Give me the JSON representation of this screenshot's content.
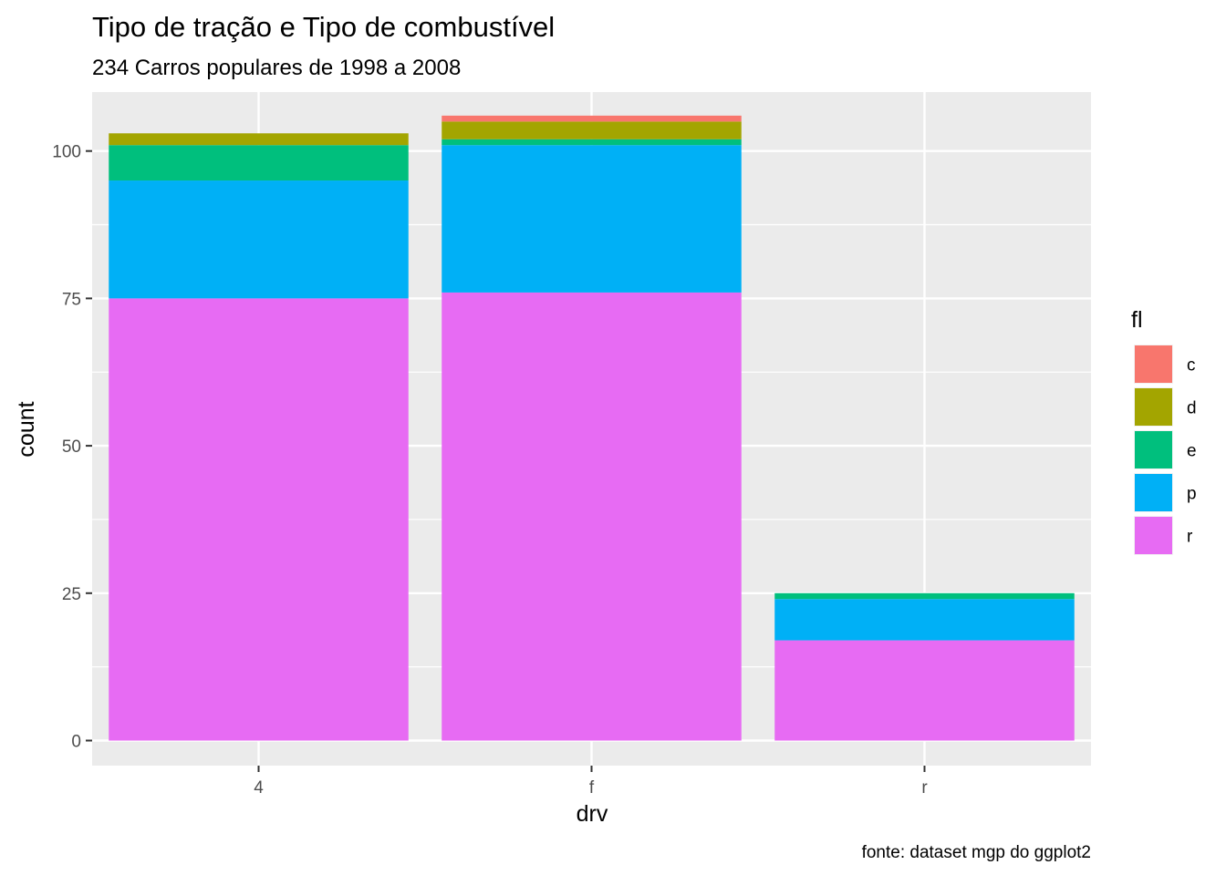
{
  "chart_data": {
    "type": "bar",
    "stacked": true,
    "title": "Tipo de tração e Tipo de combustível",
    "subtitle": "234 Carros populares de 1998 a 2008",
    "caption": "fonte: dataset mgp do ggplot2",
    "xlabel": "drv",
    "ylabel": "count",
    "categories": [
      "4",
      "f",
      "r"
    ],
    "ylim": [
      -4.25,
      110
    ],
    "yticks": [
      0,
      25,
      50,
      75,
      100
    ],
    "grid": true,
    "legend": {
      "title": "fl",
      "position": "right"
    },
    "series": [
      {
        "name": "c",
        "color": "#F8766D",
        "values": [
          0,
          1,
          0
        ]
      },
      {
        "name": "d",
        "color": "#A3A500",
        "values": [
          2,
          3,
          0
        ]
      },
      {
        "name": "e",
        "color": "#00BF7D",
        "values": [
          6,
          1,
          1
        ]
      },
      {
        "name": "p",
        "color": "#00B0F6",
        "values": [
          20,
          25,
          7
        ]
      },
      {
        "name": "r",
        "color": "#E76BF3",
        "values": [
          75,
          76,
          17
        ]
      }
    ]
  }
}
